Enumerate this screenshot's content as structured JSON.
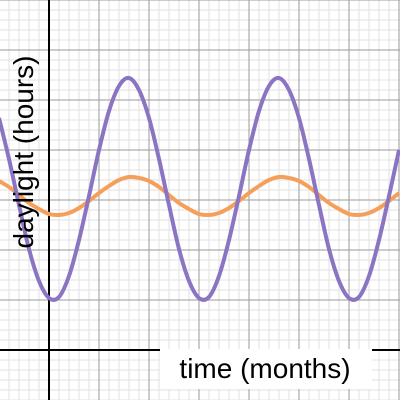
{
  "chart_data": {
    "type": "line",
    "x_label": "time (months)",
    "y_label": "daylight (hours)",
    "x": [
      -5,
      -4,
      -3,
      -2,
      -1,
      0,
      1,
      2,
      3,
      4,
      5,
      6,
      7,
      8,
      9,
      10,
      11,
      12,
      13,
      14,
      15,
      16,
      17,
      18,
      19,
      20,
      21,
      22,
      23,
      24,
      25,
      26,
      27,
      28,
      29,
      30,
      31,
      32,
      33,
      34,
      35
    ],
    "series": [
      {
        "color": "#8b74c2",
        "values": [
          23.2,
          19.1,
          14.5,
          10.1,
          6.9,
          5.2,
          5.3,
          7.4,
          11.0,
          15.4,
          20.0,
          23.9,
          26.4,
          27.2,
          26.0,
          23.2,
          19.1,
          14.5,
          10.1,
          6.9,
          5.2,
          5.3,
          7.4,
          11.0,
          15.4,
          20.0,
          23.9,
          26.4,
          27.2,
          26.0,
          23.2,
          19.1,
          14.5,
          10.1,
          6.9,
          5.2,
          5.3,
          7.4,
          11.0,
          15.4,
          20.0
        ]
      },
      {
        "color": "#f5a05a",
        "values": [
          16.9,
          16.3,
          15.5,
          14.7,
          14.1,
          13.6,
          13.5,
          13.7,
          14.2,
          14.9,
          15.7,
          16.4,
          17.0,
          17.3,
          17.2,
          16.9,
          16.3,
          15.5,
          14.7,
          14.1,
          13.6,
          13.5,
          13.7,
          14.2,
          14.9,
          15.7,
          16.4,
          17.0,
          17.3,
          17.2,
          16.9,
          16.3,
          15.5,
          14.7,
          14.1,
          13.6,
          13.5,
          13.7,
          14.2,
          14.9,
          15.7
        ]
      }
    ],
    "xlim": [
      -4.9,
      35.1
    ],
    "ylim": [
      -5,
      35
    ],
    "xticks": [
      0,
      5,
      10,
      15,
      20,
      25,
      30,
      35
    ],
    "yticks": [
      0,
      5,
      10,
      15,
      20,
      25,
      30,
      35
    ],
    "grid": true
  }
}
